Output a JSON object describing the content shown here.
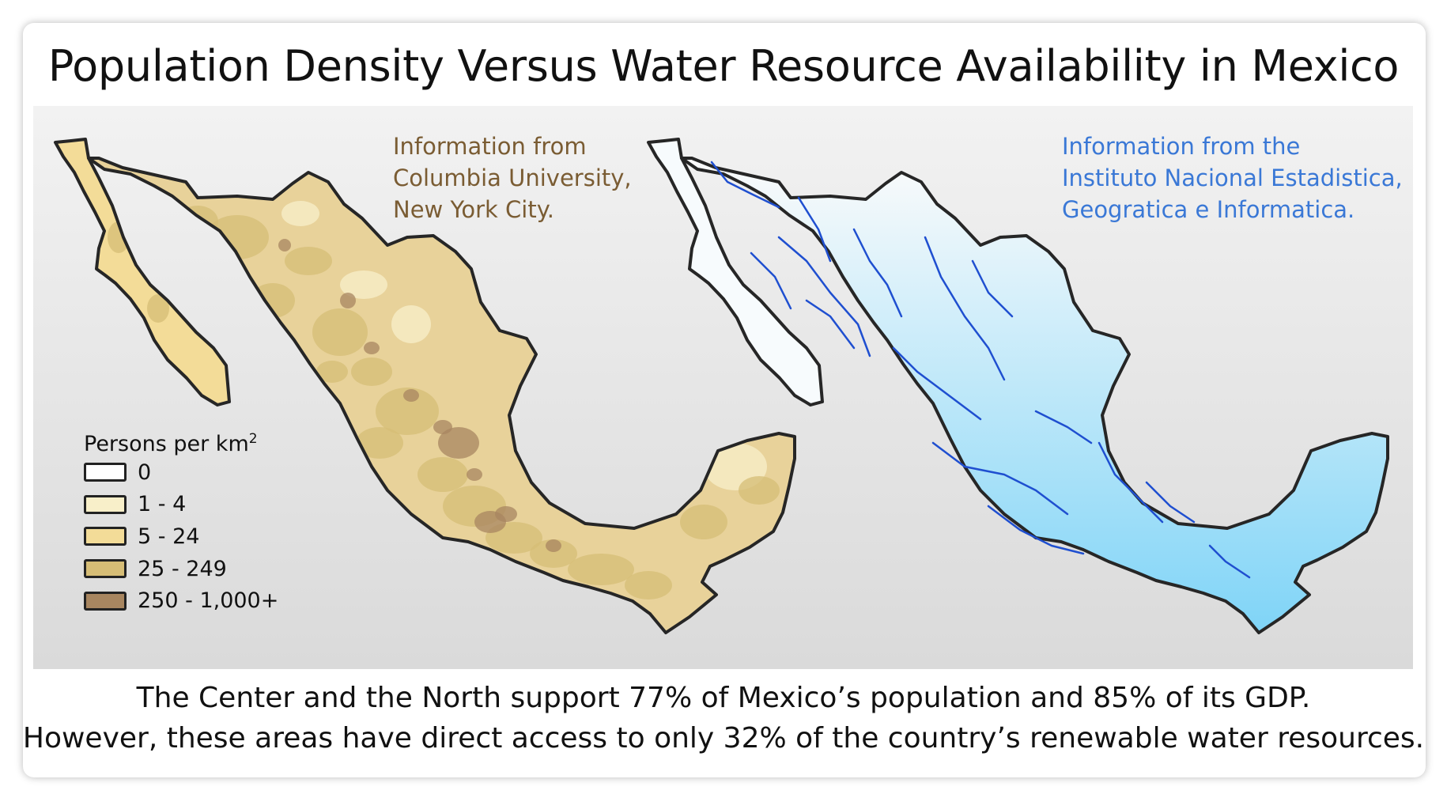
{
  "title": "Population Density Versus Water Resource Availability in Mexico",
  "left_map": {
    "source_text": "Information from\nColumbia University,\nNew York City.",
    "source_color": "#7a5c33",
    "fill_color": "#e8d29a",
    "legend": {
      "title": "Persons per km",
      "superscript": "2",
      "items": [
        {
          "label": "0",
          "color": "#ffffff"
        },
        {
          "label": "1 - 4",
          "color": "#f8efc9"
        },
        {
          "label": "5 - 24",
          "color": "#f3dc98"
        },
        {
          "label": "25 - 249",
          "color": "#d6bd76"
        },
        {
          "label": "250 - 1,000+",
          "color": "#a88660"
        }
      ]
    }
  },
  "right_map": {
    "source_text": "Information from the\nInstituto Nacional Estadistica,\nGeogratica e Informatica.",
    "source_color": "#3a78d6",
    "fill_top_color": "#fbfbfb",
    "fill_bottom_color": "#7fd4f7",
    "river_color": "#1f4fd0"
  },
  "caption": {
    "line1": "The Center and the North support 77% of Mexico’s population and 85% of its GDP.",
    "line2": "However, these areas have direct access to only 32% of the country’s renewable water resources."
  }
}
